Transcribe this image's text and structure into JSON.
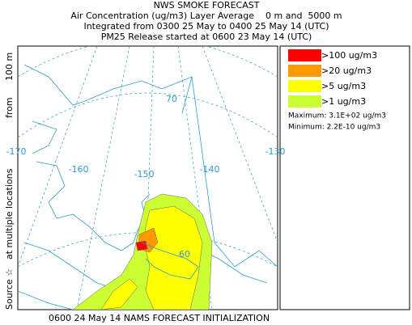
{
  "header": {
    "title": "NWS SMOKE FORECAST",
    "lines": [
      "Air Concentration (ug/m3) Layer Average    0 m and  5000 m",
      "Integrated from 0300 25 May to 0400 25 May 14 (UTC)",
      "PM25 Release started at 0600 23 May 14 (UTC)"
    ]
  },
  "side_label": [
    "Source ☆",
    "at multiple locations",
    "from",
    "100 m"
  ],
  "footer": "0600 24 May 14 NAMS FORECAST INITIALIZATION",
  "legend": {
    "items": [
      {
        "label": ">100 ug/m3",
        "color": "#ff0000"
      },
      {
        "label": ">20 ug/m3",
        "color": "#ff9900"
      },
      {
        "label": ">5 ug/m3",
        "color": "#ffff00"
      },
      {
        "label": ">1 ug/m3",
        "color": "#ccff33"
      }
    ],
    "maximum": "Maximum: 3.1E+02 ug/m3",
    "minimum": "Minimum: 2.2E-10 ug/m3"
  },
  "map": {
    "longitude_labels": [
      "-170",
      "-160",
      "-150",
      "-140",
      "-130"
    ],
    "latitude_labels": [
      "70",
      "60"
    ]
  }
}
